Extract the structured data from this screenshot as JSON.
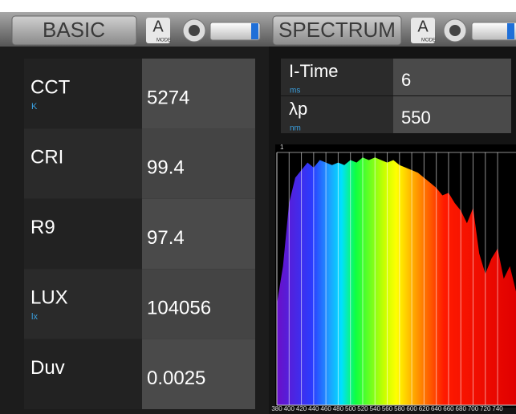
{
  "top_bar": {
    "left_button": "BASIC",
    "right_button": "SPECTRUM",
    "mode_icon": "A",
    "mode_label": "MODE"
  },
  "basic_table": {
    "rows": [
      {
        "label": "CCT",
        "unit": "K",
        "value": 5274
      },
      {
        "label": "CRI",
        "value": 99.4
      },
      {
        "label": "R9",
        "value": 97.4
      },
      {
        "label": "LUX",
        "unit": "lx",
        "value": 104056
      },
      {
        "label": "Duv",
        "value": 0.0025
      }
    ]
  },
  "spectrum_settings": {
    "rows": [
      {
        "label": "I-Time",
        "unit": "ms",
        "value": 6
      },
      {
        "label": "λp",
        "unit": "nm",
        "value": 550
      }
    ]
  },
  "chart_data": {
    "type": "area",
    "x": [
      380,
      390,
      400,
      410,
      420,
      430,
      440,
      450,
      460,
      470,
      480,
      490,
      500,
      510,
      520,
      530,
      540,
      550,
      560,
      570,
      580,
      590,
      600,
      610,
      620,
      630,
      640,
      650,
      660,
      670,
      680,
      690,
      700,
      710,
      720,
      730,
      740,
      750,
      760,
      770
    ],
    "values": [
      0.4,
      0.55,
      0.8,
      0.9,
      0.93,
      0.96,
      0.94,
      0.97,
      0.96,
      0.95,
      0.96,
      0.95,
      0.97,
      0.96,
      0.98,
      0.97,
      0.98,
      0.97,
      0.96,
      0.97,
      0.95,
      0.94,
      0.93,
      0.92,
      0.9,
      0.88,
      0.86,
      0.83,
      0.84,
      0.8,
      0.77,
      0.72,
      0.78,
      0.6,
      0.52,
      0.58,
      0.62,
      0.5,
      0.55,
      0.45
    ],
    "xlim": [
      380,
      770
    ],
    "xticks": [
      380,
      400,
      420,
      440,
      460,
      480,
      500,
      520,
      540,
      560,
      580,
      600,
      620,
      640,
      660,
      680,
      700,
      720,
      740
    ],
    "ylim": [
      0,
      1
    ],
    "yticks": [
      1
    ],
    "grid": true
  }
}
